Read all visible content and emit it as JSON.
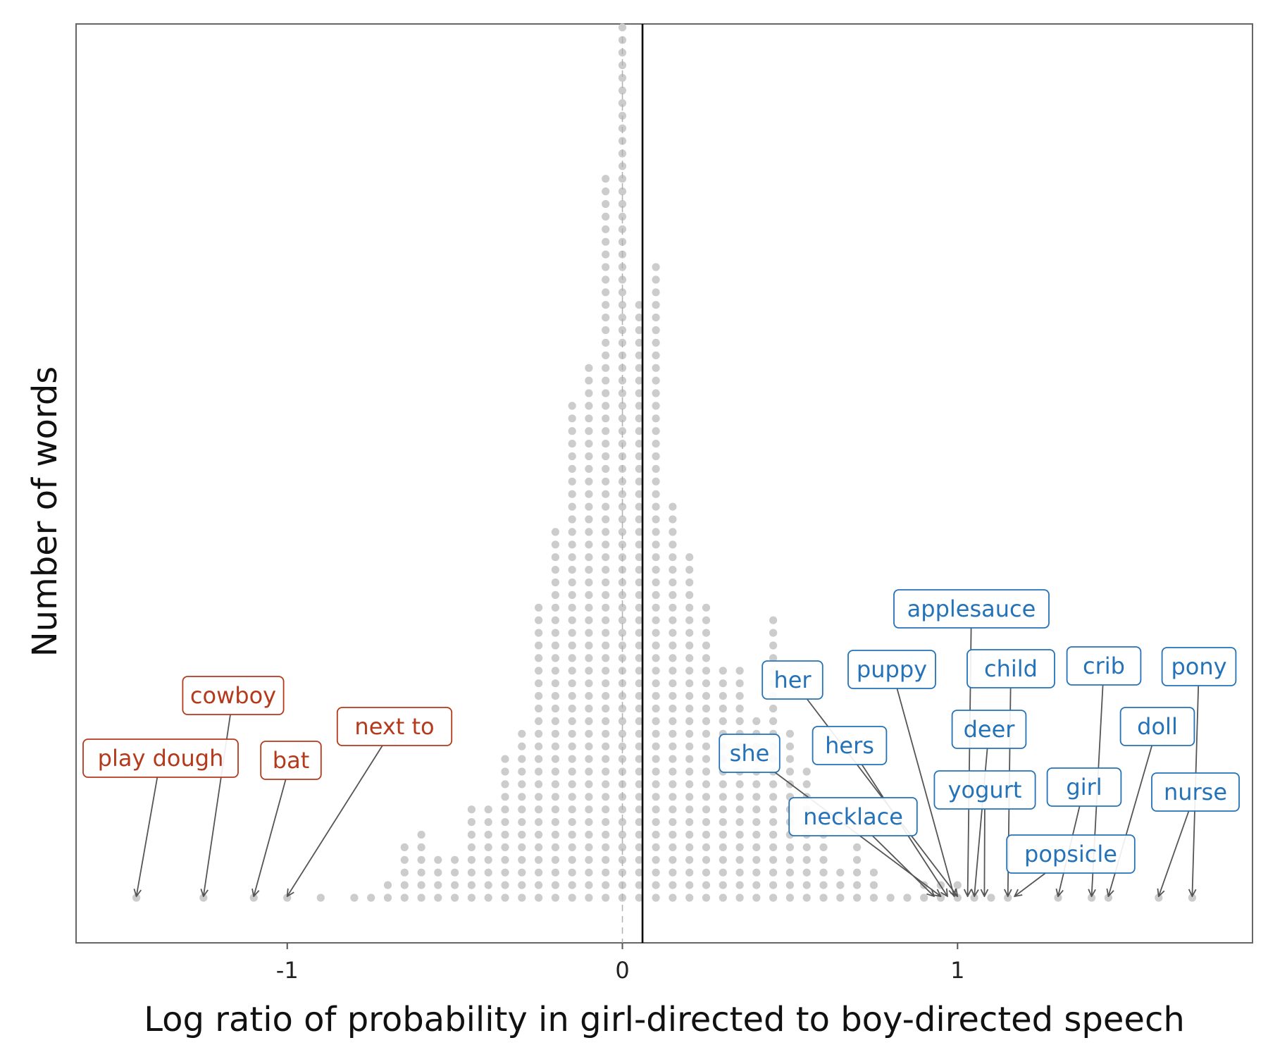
{
  "chart_data": {
    "type": "dotplot",
    "xlabel": "Log ratio of probability in girl-directed to boy-directed speech",
    "ylabel": "Number of words",
    "xlim": [
      -1.63,
      1.88
    ],
    "x_ticks": [
      -1,
      0,
      1
    ],
    "x_tick_labels": [
      "-1",
      "0",
      "1"
    ],
    "grid": false,
    "dot_color": "#cccccc",
    "reference_lines": {
      "zero_dashed": 0,
      "mean_solid": 0.06
    },
    "bin_width": 0.05,
    "bins": [
      {
        "x": -1.45,
        "count": 1
      },
      {
        "x": -1.25,
        "count": 1
      },
      {
        "x": -1.1,
        "count": 1
      },
      {
        "x": -1.0,
        "count": 1
      },
      {
        "x": -0.9,
        "count": 1
      },
      {
        "x": -0.8,
        "count": 1
      },
      {
        "x": -0.75,
        "count": 1
      },
      {
        "x": -0.7,
        "count": 2
      },
      {
        "x": -0.65,
        "count": 5
      },
      {
        "x": -0.6,
        "count": 6
      },
      {
        "x": -0.55,
        "count": 4
      },
      {
        "x": -0.5,
        "count": 4
      },
      {
        "x": -0.45,
        "count": 8
      },
      {
        "x": -0.4,
        "count": 8
      },
      {
        "x": -0.35,
        "count": 12
      },
      {
        "x": -0.3,
        "count": 14
      },
      {
        "x": -0.25,
        "count": 24
      },
      {
        "x": -0.2,
        "count": 30
      },
      {
        "x": -0.15,
        "count": 40
      },
      {
        "x": -0.1,
        "count": 43
      },
      {
        "x": -0.05,
        "count": 58
      },
      {
        "x": 0.0,
        "count": 70
      },
      {
        "x": 0.05,
        "count": 48
      },
      {
        "x": 0.1,
        "count": 51
      },
      {
        "x": 0.15,
        "count": 32
      },
      {
        "x": 0.2,
        "count": 28
      },
      {
        "x": 0.25,
        "count": 24
      },
      {
        "x": 0.3,
        "count": 19
      },
      {
        "x": 0.35,
        "count": 19
      },
      {
        "x": 0.4,
        "count": 15
      },
      {
        "x": 0.45,
        "count": 23
      },
      {
        "x": 0.5,
        "count": 14
      },
      {
        "x": 0.55,
        "count": 11
      },
      {
        "x": 0.6,
        "count": 6
      },
      {
        "x": 0.65,
        "count": 3
      },
      {
        "x": 0.7,
        "count": 5
      },
      {
        "x": 0.75,
        "count": 3
      },
      {
        "x": 0.8,
        "count": 1
      },
      {
        "x": 0.85,
        "count": 1
      },
      {
        "x": 0.9,
        "count": 2
      },
      {
        "x": 0.95,
        "count": 2
      },
      {
        "x": 1.0,
        "count": 2
      },
      {
        "x": 1.05,
        "count": 1
      },
      {
        "x": 1.1,
        "count": 1
      },
      {
        "x": 1.15,
        "count": 1
      },
      {
        "x": 1.3,
        "count": 1
      },
      {
        "x": 1.4,
        "count": 1
      },
      {
        "x": 1.45,
        "count": 1
      },
      {
        "x": 1.6,
        "count": 1
      },
      {
        "x": 1.7,
        "count": 1
      }
    ],
    "annotations": [
      {
        "label": "play dough",
        "x": -1.45,
        "group": "boy"
      },
      {
        "label": "cowboy",
        "x": -1.25,
        "group": "boy"
      },
      {
        "label": "bat",
        "x": -1.1,
        "group": "boy"
      },
      {
        "label": "next to",
        "x": -1.0,
        "group": "boy"
      },
      {
        "label": "she",
        "x": 0.95,
        "group": "girl"
      },
      {
        "label": "her",
        "x": 1.0,
        "group": "girl"
      },
      {
        "label": "hers",
        "x": 0.97,
        "group": "girl"
      },
      {
        "label": "necklace",
        "x": 0.93,
        "group": "girl"
      },
      {
        "label": "puppy",
        "x": 0.99,
        "group": "girl"
      },
      {
        "label": "applesauce",
        "x": 1.03,
        "group": "girl"
      },
      {
        "label": "deer",
        "x": 1.05,
        "group": "girl"
      },
      {
        "label": "yogurt",
        "x": 1.08,
        "group": "girl"
      },
      {
        "label": "child",
        "x": 1.15,
        "group": "girl"
      },
      {
        "label": "popsicle",
        "x": 1.17,
        "group": "girl"
      },
      {
        "label": "girl",
        "x": 1.3,
        "group": "girl"
      },
      {
        "label": "crib",
        "x": 1.4,
        "group": "girl"
      },
      {
        "label": "doll",
        "x": 1.45,
        "group": "girl"
      },
      {
        "label": "pony",
        "x": 1.7,
        "group": "girl"
      },
      {
        "label": "nurse",
        "x": 1.6,
        "group": "girl"
      }
    ],
    "group_colors": {
      "boy": "#b5391b",
      "girl": "#2472b8"
    }
  }
}
